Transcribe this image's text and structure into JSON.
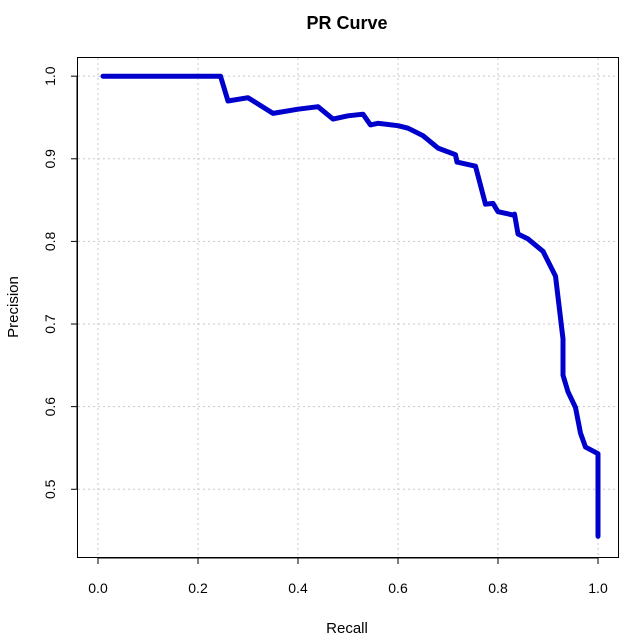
{
  "chart_data": {
    "type": "line",
    "title": "PR Curve",
    "xlabel": "Recall",
    "ylabel": "Precision",
    "xlim": [
      -0.04,
      1.04
    ],
    "ylim": [
      0.418,
      1.022
    ],
    "x_ticks": [
      0.0,
      0.2,
      0.4,
      0.6,
      0.8,
      1.0
    ],
    "y_ticks": [
      0.5,
      0.6,
      0.7,
      0.8,
      0.9,
      1.0
    ],
    "x_tick_labels": [
      "0.0",
      "0.2",
      "0.4",
      "0.6",
      "0.8",
      "1.0"
    ],
    "y_tick_labels": [
      "0.5",
      "0.6",
      "0.7",
      "0.8",
      "0.9",
      "1.0"
    ],
    "grid": true,
    "grid_style": "dotted",
    "line_color": "#0000cd",
    "series": [
      {
        "x": [
          0.01,
          0.1,
          0.2,
          0.245,
          0.26,
          0.3,
          0.35,
          0.4,
          0.44,
          0.47,
          0.5,
          0.53,
          0.545,
          0.56,
          0.6,
          0.62,
          0.65,
          0.68,
          0.715,
          0.718,
          0.755,
          0.775,
          0.79,
          0.8,
          0.83,
          0.833,
          0.84,
          0.86,
          0.89,
          0.915,
          0.93,
          0.93,
          0.94,
          0.955,
          0.965,
          0.975,
          1.0,
          1.0
        ],
        "y": [
          1.0,
          1.0,
          1.0,
          1.0,
          0.97,
          0.974,
          0.955,
          0.96,
          0.963,
          0.948,
          0.952,
          0.954,
          0.941,
          0.943,
          0.94,
          0.937,
          0.928,
          0.913,
          0.905,
          0.896,
          0.891,
          0.845,
          0.846,
          0.836,
          0.832,
          0.833,
          0.809,
          0.803,
          0.788,
          0.758,
          0.682,
          0.638,
          0.618,
          0.599,
          0.568,
          0.551,
          0.543,
          0.443
        ]
      }
    ]
  }
}
